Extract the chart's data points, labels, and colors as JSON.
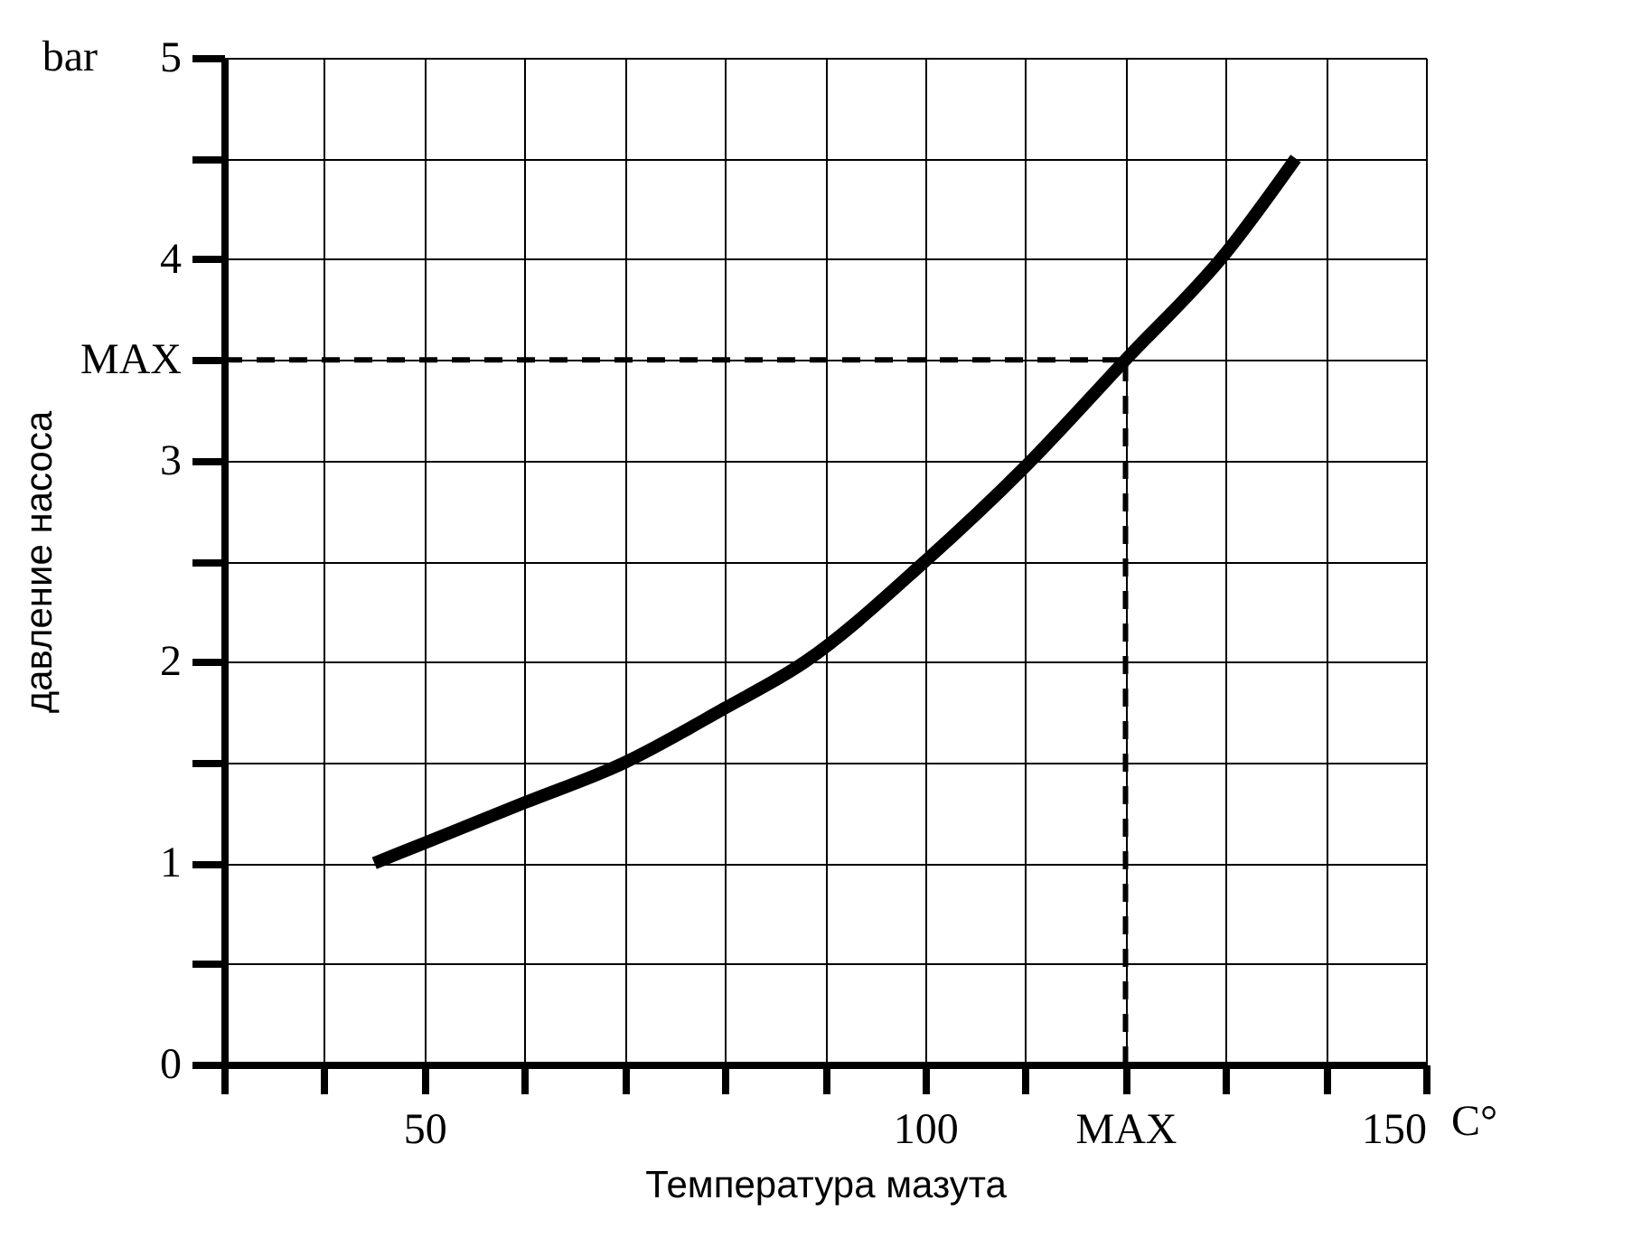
{
  "chart_data": {
    "type": "line",
    "xlabel": "Температура мазута",
    "ylabel": "давление насоса",
    "annotations": [
      "bar",
      "C°"
    ],
    "xlim": [
      30,
      150
    ],
    "ylim": [
      0,
      5
    ],
    "xticks": [
      {
        "value": 30,
        "label": null
      },
      {
        "value": 40,
        "label": null
      },
      50,
      {
        "value": 60,
        "label": null
      },
      {
        "value": 70,
        "label": null
      },
      {
        "value": 80,
        "label": null
      },
      {
        "value": 90,
        "label": null
      },
      100,
      {
        "value": 110,
        "label": null
      },
      {
        "value": 120,
        "label": "MAX"
      },
      {
        "value": 130,
        "label": null
      },
      {
        "value": 140,
        "label": null
      },
      150
    ],
    "yticks": [
      0,
      {
        "value": 0.5,
        "label": null
      },
      1,
      {
        "value": 1.5,
        "label": null
      },
      2,
      {
        "value": 2.5,
        "label": null
      },
      3,
      {
        "value": 3.5,
        "label": "MAX"
      },
      4,
      {
        "value": 4.5,
        "label": null
      },
      5
    ],
    "grid": true,
    "marker": "none",
    "line_style": "solid",
    "ref_lines": [
      {
        "axis": "y",
        "value": 3.5,
        "color": "#000000",
        "line_style": "dashed"
      },
      {
        "axis": "x",
        "value": 120,
        "color": "#000000",
        "line_style": "dashed"
      }
    ],
    "series": [
      {
        "color": "#000000",
        "x": [
          45,
          50,
          60,
          70,
          80,
          88,
          100,
          110,
          120,
          130,
          137
        ],
        "values": [
          1,
          1.1,
          1.3,
          1.5,
          1.77,
          2,
          2.5,
          2.97,
          3.5,
          4.03,
          4.5
        ]
      }
    ]
  }
}
